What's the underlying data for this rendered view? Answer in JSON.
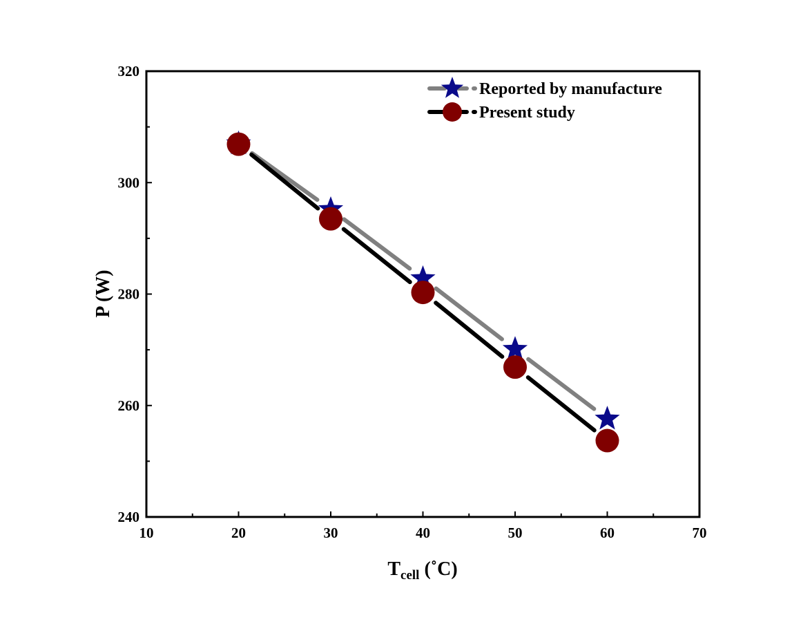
{
  "chart_data": {
    "type": "line",
    "title": "",
    "xlabel": "T",
    "xlabel_sub": "cell",
    "xlabel_unit": " (˚C)",
    "ylabel": "P (W)",
    "xlim": [
      10,
      70
    ],
    "ylim": [
      240,
      320
    ],
    "xticks": [
      10,
      20,
      30,
      40,
      50,
      60,
      70
    ],
    "yticks": [
      240,
      260,
      280,
      300,
      320
    ],
    "grid": false,
    "legend_position": "top-right",
    "x": [
      20,
      30,
      40,
      50,
      60
    ],
    "series": [
      {
        "name": "Reported by manufacture",
        "values": [
          307.0,
          295.2,
          282.8,
          270.1,
          257.6
        ],
        "line_color": "#808080",
        "marker": "star",
        "marker_color": "#0a0a8a"
      },
      {
        "name": "Present study",
        "values": [
          306.9,
          293.5,
          280.3,
          266.9,
          253.7
        ],
        "line_color": "#000000",
        "marker": "circle",
        "marker_color": "#800000"
      }
    ]
  }
}
